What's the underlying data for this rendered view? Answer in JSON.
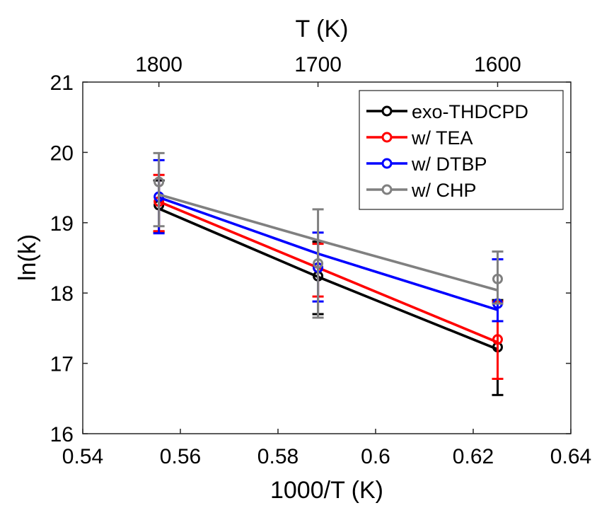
{
  "chart_data": {
    "type": "line",
    "xlabel": "1000/T (K)",
    "ylabel": "ln(k)",
    "top_xlabel": "T (K)",
    "xlim": [
      0.54,
      0.64
    ],
    "ylim": [
      16,
      21
    ],
    "x_ticks": [
      0.54,
      0.56,
      0.58,
      0.6,
      0.62,
      0.64
    ],
    "x_tick_labels": [
      "0.54",
      "0.56",
      "0.58",
      "0.6",
      "0.62",
      "0.64"
    ],
    "y_ticks": [
      16,
      17,
      18,
      19,
      20,
      21
    ],
    "y_tick_labels": [
      "16",
      "17",
      "18",
      "19",
      "20",
      "21"
    ],
    "top_ticks": [
      {
        "x": 0.5556,
        "label": "1800"
      },
      {
        "x": 0.5882,
        "label": "1700"
      },
      {
        "x": 0.625,
        "label": "1600"
      }
    ],
    "grid": false,
    "legend_position": "top-right",
    "x": [
      0.5556,
      0.5882,
      0.625
    ],
    "series": [
      {
        "name": "exo-THDCPD",
        "color": "#000000",
        "points": [
          19.25,
          18.24,
          17.23
        ],
        "fit": [
          19.2,
          18.23,
          17.2
        ],
        "err_low": [
          18.87,
          17.7,
          16.55
        ],
        "err_high": [
          19.6,
          18.73,
          17.9
        ]
      },
      {
        "name": "w/ TEA",
        "color": "#ff0000",
        "points": [
          19.3,
          18.36,
          17.34
        ],
        "fit": [
          19.3,
          18.36,
          17.3
        ],
        "err_low": [
          18.88,
          17.95,
          16.78
        ],
        "err_high": [
          19.68,
          18.7,
          17.88
        ]
      },
      {
        "name": "w/ DTBP",
        "color": "#0000ff",
        "points": [
          19.37,
          18.36,
          17.85
        ],
        "fit": [
          19.36,
          18.56,
          17.76
        ],
        "err_low": [
          18.85,
          17.88,
          17.6
        ],
        "err_high": [
          19.89,
          18.86,
          18.48
        ]
      },
      {
        "name": "w/ CHP",
        "color": "#808080",
        "points": [
          19.58,
          18.42,
          18.2
        ],
        "fit": [
          19.4,
          18.75,
          18.04
        ],
        "err_low": [
          18.95,
          17.65,
          17.85
        ],
        "err_high": [
          19.99,
          19.19,
          18.59
        ]
      }
    ]
  }
}
